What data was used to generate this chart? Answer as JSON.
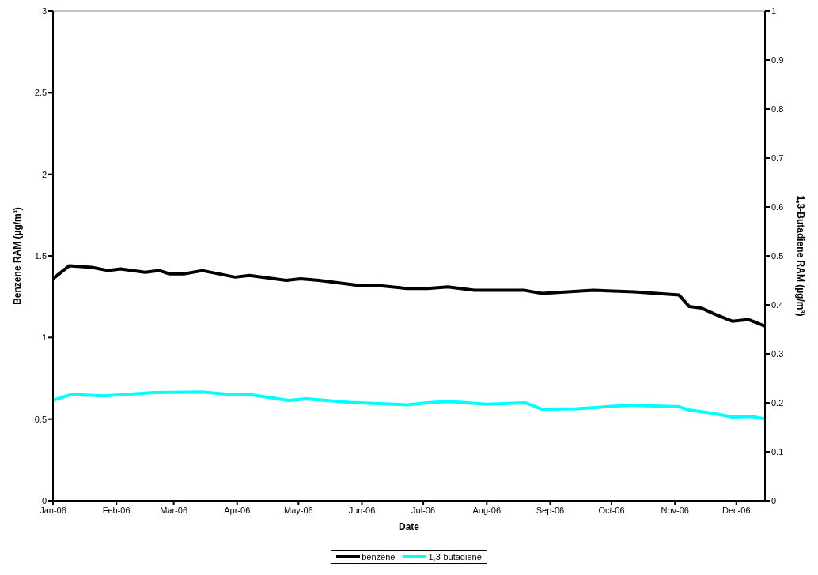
{
  "chart_data": {
    "type": "line",
    "xlabel": "Date",
    "ylabel": "Benzene RAM (µg/m³)",
    "y2label": "1,3-Butadiene RAM (µg/m³)",
    "xlim": [
      "2006-01-01",
      "2006-12-15"
    ],
    "xticks": [
      {
        "value": "2006-01-01",
        "label": "Jan-06"
      },
      {
        "value": "2006-02-01",
        "label": "Feb-06"
      },
      {
        "value": "2006-03-01",
        "label": "Mar-06"
      },
      {
        "value": "2006-04-01",
        "label": "Apr-06"
      },
      {
        "value": "2006-05-01",
        "label": "May-06"
      },
      {
        "value": "2006-06-01",
        "label": "Jun-06"
      },
      {
        "value": "2006-07-01",
        "label": "Jul-06"
      },
      {
        "value": "2006-08-01",
        "label": "Aug-06"
      },
      {
        "value": "2006-09-01",
        "label": "Sep-06"
      },
      {
        "value": "2006-10-01",
        "label": "Oct-06"
      },
      {
        "value": "2006-11-01",
        "label": "Nov-06"
      },
      {
        "value": "2006-12-01",
        "label": "Dec-06"
      }
    ],
    "ylim": [
      0,
      3
    ],
    "yticks": [
      0,
      0.5,
      1,
      1.5,
      2,
      2.5,
      3
    ],
    "y2lim": [
      0,
      1
    ],
    "y2ticks": [
      0,
      0.1,
      0.2,
      0.3,
      0.4,
      0.5,
      0.6,
      0.7,
      0.8,
      0.9,
      1
    ],
    "legend": "bottom",
    "marker": "none",
    "line_style": "solid",
    "series": [
      {
        "name": "benzene",
        "color": "#000000",
        "x": [
          "2006-01-01",
          "2006-01-09",
          "2006-01-20",
          "2006-01-28",
          "2006-02-03",
          "2006-02-15",
          "2006-02-22",
          "2006-02-27",
          "2006-03-06",
          "2006-03-15",
          "2006-03-31",
          "2006-04-07",
          "2006-04-25",
          "2006-05-02",
          "2006-05-11",
          "2006-05-30",
          "2006-06-08",
          "2006-06-23",
          "2006-07-03",
          "2006-07-13",
          "2006-07-26",
          "2006-08-19",
          "2006-08-28",
          "2006-09-22",
          "2006-10-12",
          "2006-11-03",
          "2006-11-08",
          "2006-11-14",
          "2006-11-21",
          "2006-11-29",
          "2006-12-07",
          "2006-12-15"
        ],
        "values": [
          1.36,
          1.44,
          1.43,
          1.41,
          1.42,
          1.4,
          1.41,
          1.39,
          1.39,
          1.41,
          1.37,
          1.38,
          1.35,
          1.36,
          1.35,
          1.32,
          1.32,
          1.3,
          1.3,
          1.31,
          1.29,
          1.29,
          1.27,
          1.29,
          1.28,
          1.26,
          1.19,
          1.18,
          1.14,
          1.1,
          1.11,
          1.07
        ]
      },
      {
        "name": "1,3-butadiene",
        "color": "#00ffff",
        "axis": "y2",
        "x": [
          "2006-01-01",
          "2006-01-10",
          "2006-01-26",
          "2006-02-19",
          "2006-03-15",
          "2006-03-31",
          "2006-04-07",
          "2006-04-26",
          "2006-05-05",
          "2006-05-26",
          "2006-06-23",
          "2006-07-03",
          "2006-07-13",
          "2006-08-01",
          "2006-08-20",
          "2006-08-28",
          "2006-09-14",
          "2006-10-10",
          "2006-11-03",
          "2006-11-08",
          "2006-11-19",
          "2006-11-29",
          "2006-12-09",
          "2006-12-15"
        ],
        "values": [
          0.205,
          0.217,
          0.214,
          0.221,
          0.222,
          0.216,
          0.217,
          0.205,
          0.208,
          0.201,
          0.196,
          0.2,
          0.203,
          0.197,
          0.2,
          0.187,
          0.188,
          0.195,
          0.192,
          0.185,
          0.179,
          0.171,
          0.172,
          0.167
        ]
      }
    ]
  }
}
